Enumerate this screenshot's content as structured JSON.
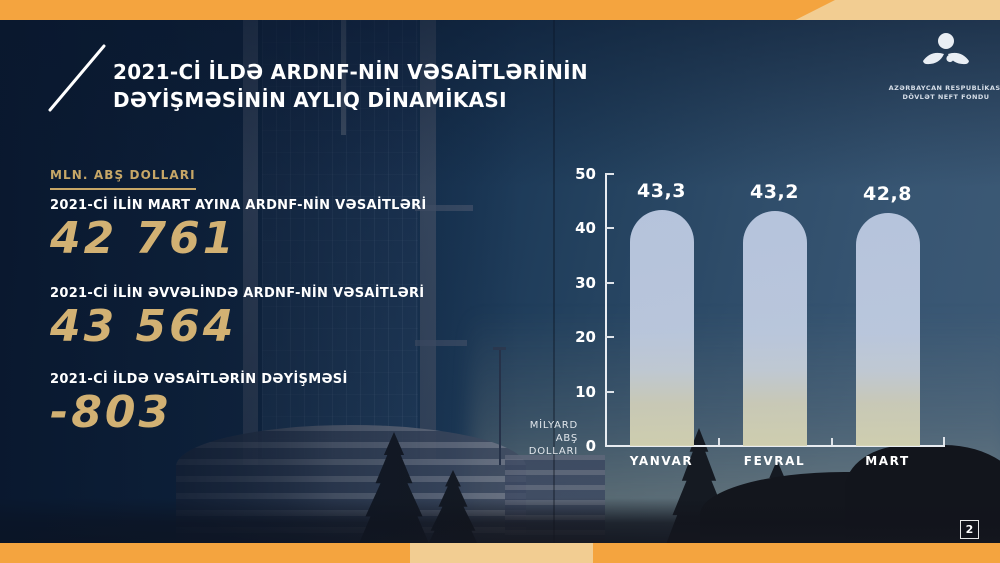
{
  "title": {
    "line1": "2021-Cİ İLDƏ ARDNF-NİN VƏSAİTLƏRİNİN",
    "line2": "DƏYİŞMƏSİNİN AYLIQ DİNAMİKASI"
  },
  "logo": {
    "line1": "AZƏRBAYCAN RESPUBLİKASI",
    "line2": "DÖVLƏT NEFT FONDU"
  },
  "stats": {
    "unit_label": "MLN. ABŞ DOLLARI",
    "items": [
      {
        "label": "2021-Cİ İLİN MART AYINA ARDNF-NİN VƏSAİTLƏRİ",
        "value": "42 761"
      },
      {
        "label": "2021-Cİ İLİN ƏVVƏLİNDƏ ARDNF-NİN VƏSAİTLƏRİ",
        "value": "43 564"
      },
      {
        "label": "2021-Cİ İLDƏ VƏSAİTLƏRİN DƏYİŞMƏSİ",
        "value": "-803"
      }
    ]
  },
  "chart_data": {
    "type": "bar",
    "categories": [
      "YANVAR",
      "FEVRAL",
      "MART"
    ],
    "values": [
      43.3,
      43.2,
      42.8
    ],
    "value_labels": [
      "43,3",
      "43,2",
      "42,8"
    ],
    "ylabel_lines": [
      "MİLYARD",
      "ABŞ DOLLARI"
    ],
    "ylim": [
      0,
      50
    ],
    "yticks": [
      0,
      10,
      20,
      30,
      40,
      50
    ],
    "grid": false,
    "legend": null,
    "bar_color": "#bfcbe3",
    "axis_color": "#e8ecf1"
  },
  "page_number": "2",
  "colors": {
    "accent_orange": "#f4a43f",
    "accent_tan": "#f2cd92",
    "gold": "#d2b173",
    "navy": "#15304f"
  }
}
